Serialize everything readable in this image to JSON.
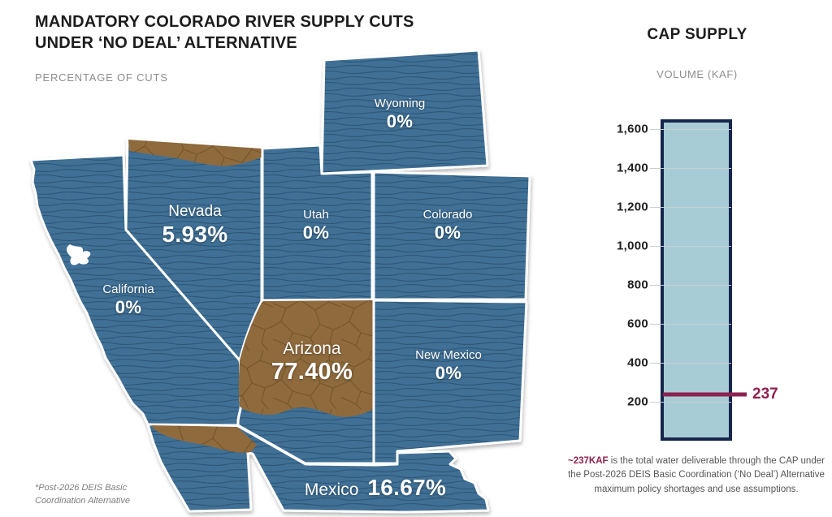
{
  "header": {
    "title_line1": "MANDATORY COLORADO RIVER SUPPLY CUTS",
    "title_line2": "UNDER ‘NO DEAL’ ALTERNATIVE",
    "subtitle": "PERCENTAGE OF CUTS"
  },
  "footnote": "*Post-2026 DEIS Basic Coordination Alternative",
  "map": {
    "states": [
      {
        "name": "Wyoming",
        "pct": "0%"
      },
      {
        "name": "Nevada",
        "pct": "5.93%"
      },
      {
        "name": "Utah",
        "pct": "0%"
      },
      {
        "name": "Colorado",
        "pct": "0%"
      },
      {
        "name": "California",
        "pct": "0%"
      },
      {
        "name": "Arizona",
        "pct": "77.40%"
      },
      {
        "name": "New Mexico",
        "pct": "0%"
      },
      {
        "name": "Mexico",
        "pct": "16.67%"
      }
    ]
  },
  "colors": {
    "water_blue": "#3f7095",
    "water_line": "#2b5374",
    "drought_brown": "#8f6b3c",
    "crack_line": "#6b4e24",
    "bar_fill": "#a8ccd6",
    "bar_border": "#15264d",
    "marker_maroon": "#8d2150"
  },
  "chart_data": [
    {
      "type": "bar",
      "title": "CAP SUPPLY",
      "subtitle": "VOLUME (KAF)",
      "ylabel": "Volume (KAF)",
      "axis": {
        "min": 0,
        "max": 1650
      },
      "grid": true,
      "yticks": [
        1600,
        1400,
        1200,
        1000,
        800,
        600,
        400,
        200
      ],
      "ytick_labels": [
        "1,600",
        "1,400",
        "1,200",
        "1,000",
        "800",
        "600",
        "400",
        "200"
      ],
      "bar_top_value": 1650,
      "marker": {
        "value": 237,
        "label": "237"
      },
      "caption": {
        "highlight": "~237KAF",
        "text": " is the total water deliverable through the CAP under the Post-2026 DEIS Basic Coordination (‘No Deal’) Alternative maximum policy shortages and use assumptions."
      }
    },
    {
      "type": "table",
      "title": "PERCENTAGE OF CUTS",
      "categories": [
        "Wyoming",
        "Nevada",
        "Utah",
        "Colorado",
        "California",
        "Arizona",
        "New Mexico",
        "Mexico"
      ],
      "values": [
        0,
        5.93,
        0,
        0,
        0,
        77.4,
        0,
        16.67
      ]
    }
  ]
}
